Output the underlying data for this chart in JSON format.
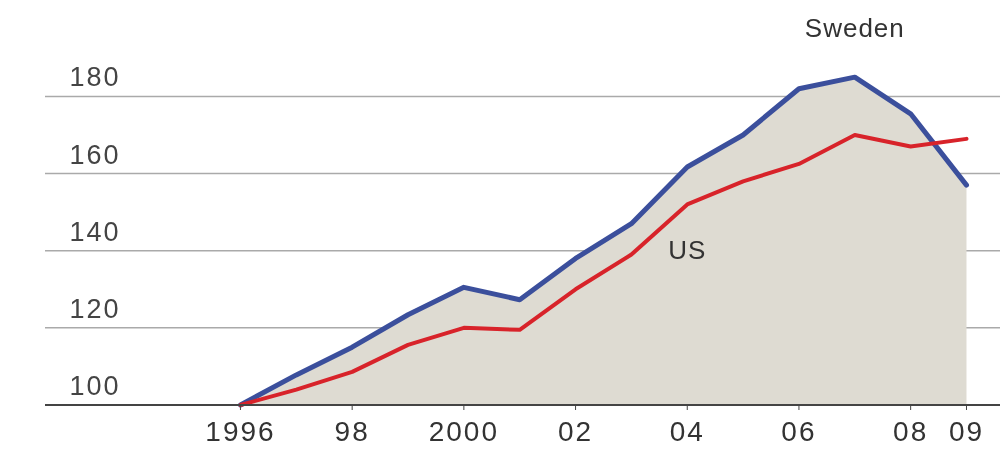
{
  "chart_data": {
    "type": "line",
    "x": [
      1996,
      1997,
      1998,
      1999,
      2000,
      2001,
      2002,
      2003,
      2004,
      2005,
      2006,
      2007,
      2008,
      2009
    ],
    "series": [
      {
        "name": "Sweden",
        "type": "area",
        "color": "#3b4f9c",
        "values": [
          100,
          107.8,
          115,
          123.4,
          130.5,
          127.3,
          138,
          147,
          161.7,
          170,
          182,
          185,
          175.5,
          157
        ]
      },
      {
        "name": "US",
        "color": "#d8232a",
        "values": [
          100,
          104,
          108.6,
          115.6,
          120,
          119.5,
          130,
          139,
          152,
          158,
          162.5,
          170,
          167,
          169
        ]
      }
    ],
    "xlim": [
      1992.5,
      2009.6
    ],
    "ylim": [
      100,
      205
    ],
    "xticks": [
      1996,
      {
        "value": 1998,
        "label": "98"
      },
      2000,
      {
        "value": 2002,
        "label": "02"
      },
      {
        "value": 2004,
        "label": "04"
      },
      {
        "value": 2006,
        "label": "06"
      },
      {
        "value": 2008,
        "label": "08"
      },
      {
        "value": 2009,
        "label": "09"
      }
    ],
    "yticks": [
      100,
      120,
      140,
      160,
      180
    ],
    "grid": "y",
    "marker": "none",
    "line_style": "solid"
  }
}
